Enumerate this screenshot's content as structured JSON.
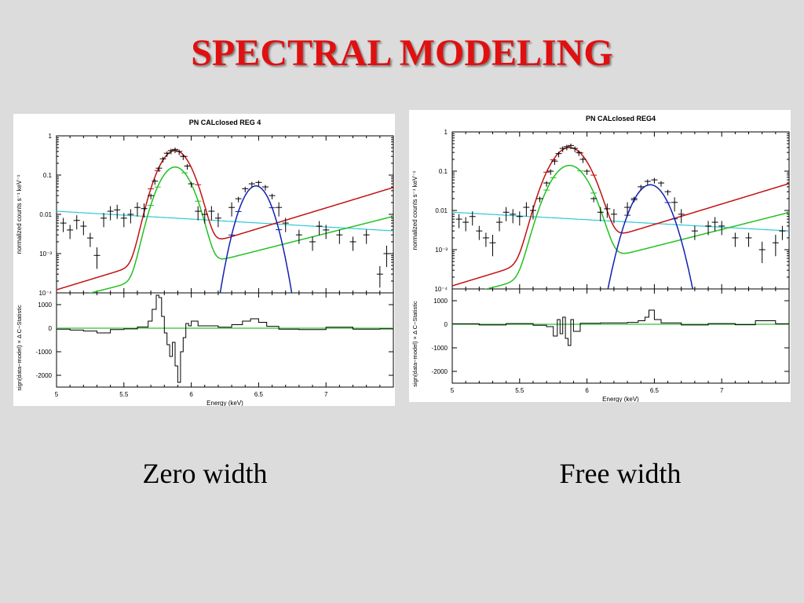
{
  "slide": {
    "title": "SPECTRAL MODELING",
    "caption_left": "Zero width",
    "caption_right": "Free width"
  },
  "colors": {
    "title": "#e01010",
    "data": "#000000",
    "total_model": "#c01010",
    "fe_xxv_line": "#20c020",
    "fe_xxvi_line": "#1020b0",
    "continuum": "#30c8d8",
    "residual_zero": "#30c030"
  },
  "chart_data": [
    {
      "type": "line",
      "title": "PN CALclosed REG 4",
      "xlabel": "Energy (keV)",
      "ylabel": "normalized counts s⁻¹ keV⁻¹",
      "yscale": "log",
      "xlim": [
        5,
        7.5
      ],
      "ylim": [
        0.0001,
        1
      ],
      "x_ticks": [
        "5",
        "5.5",
        "6",
        "6.5",
        "7"
      ],
      "y_ticks": [
        "1",
        "0.1",
        "0.01",
        "10⁻³",
        "10⁻⁴"
      ],
      "components": {
        "continuum": {
          "slope_a": [
            5,
            0.012
          ],
          "slope_b": [
            7.5,
            0.0038
          ]
        },
        "line1": {
          "center": 5.88,
          "amp": 0.16,
          "sigma": 0.085
        },
        "line1_total_amp": 0.42,
        "line2": {
          "center": 6.48,
          "amp": 0.053,
          "sigma": 0.075
        }
      },
      "data_points": [
        {
          "x": 5.05,
          "y": 0.006
        },
        {
          "x": 5.1,
          "y": 0.004
        },
        {
          "x": 5.15,
          "y": 0.007
        },
        {
          "x": 5.2,
          "y": 0.005
        },
        {
          "x": 5.25,
          "y": 0.0025
        },
        {
          "x": 5.3,
          "y": 0.0009
        },
        {
          "x": 5.35,
          "y": 0.008
        },
        {
          "x": 5.4,
          "y": 0.012
        },
        {
          "x": 5.45,
          "y": 0.013
        },
        {
          "x": 5.5,
          "y": 0.008
        },
        {
          "x": 5.55,
          "y": 0.01
        },
        {
          "x": 5.6,
          "y": 0.015
        },
        {
          "x": 5.65,
          "y": 0.014
        },
        {
          "x": 5.7,
          "y": 0.03
        },
        {
          "x": 5.73,
          "y": 0.07
        },
        {
          "x": 5.76,
          "y": 0.15
        },
        {
          "x": 5.79,
          "y": 0.26
        },
        {
          "x": 5.82,
          "y": 0.36
        },
        {
          "x": 5.85,
          "y": 0.42
        },
        {
          "x": 5.88,
          "y": 0.45
        },
        {
          "x": 5.91,
          "y": 0.4
        },
        {
          "x": 5.94,
          "y": 0.3
        },
        {
          "x": 5.97,
          "y": 0.17
        },
        {
          "x": 6.0,
          "y": 0.06
        },
        {
          "x": 6.05,
          "y": 0.012
        },
        {
          "x": 6.1,
          "y": 0.01
        },
        {
          "x": 6.15,
          "y": 0.012
        },
        {
          "x": 6.2,
          "y": 0.008
        },
        {
          "x": 6.3,
          "y": 0.015
        },
        {
          "x": 6.35,
          "y": 0.025
        },
        {
          "x": 6.4,
          "y": 0.045
        },
        {
          "x": 6.45,
          "y": 0.06
        },
        {
          "x": 6.5,
          "y": 0.065
        },
        {
          "x": 6.55,
          "y": 0.05
        },
        {
          "x": 6.6,
          "y": 0.03
        },
        {
          "x": 6.65,
          "y": 0.015
        },
        {
          "x": 6.7,
          "y": 0.006
        },
        {
          "x": 6.8,
          "y": 0.003
        },
        {
          "x": 6.9,
          "y": 0.002
        },
        {
          "x": 6.95,
          "y": 0.005
        },
        {
          "x": 7.0,
          "y": 0.004
        },
        {
          "x": 7.1,
          "y": 0.003
        },
        {
          "x": 7.2,
          "y": 0.002
        },
        {
          "x": 7.3,
          "y": 0.003
        },
        {
          "x": 7.4,
          "y": 0.0003
        },
        {
          "x": 7.45,
          "y": 0.001
        }
      ],
      "residual": {
        "ylabel": "sign(data−model) × Δ C−Statistic",
        "ylim": [
          -2500,
          1500
        ],
        "y_ticks": [
          1000,
          0,
          -1000,
          -2000
        ],
        "points": [
          {
            "x": 5.0,
            "y": -40
          },
          {
            "x": 5.1,
            "y": -80
          },
          {
            "x": 5.2,
            "y": -120
          },
          {
            "x": 5.3,
            "y": -200
          },
          {
            "x": 5.4,
            "y": -60
          },
          {
            "x": 5.5,
            "y": -30
          },
          {
            "x": 5.6,
            "y": 50
          },
          {
            "x": 5.68,
            "y": 300
          },
          {
            "x": 5.71,
            "y": 800
          },
          {
            "x": 5.74,
            "y": 1400
          },
          {
            "x": 5.76,
            "y": 1300
          },
          {
            "x": 5.78,
            "y": 500
          },
          {
            "x": 5.8,
            "y": -200
          },
          {
            "x": 5.82,
            "y": -700
          },
          {
            "x": 5.84,
            "y": -1200
          },
          {
            "x": 5.86,
            "y": -600
          },
          {
            "x": 5.88,
            "y": -1600
          },
          {
            "x": 5.9,
            "y": -2300
          },
          {
            "x": 5.92,
            "y": -1000
          },
          {
            "x": 5.94,
            "y": -400
          },
          {
            "x": 5.96,
            "y": 200
          },
          {
            "x": 5.98,
            "y": 100
          },
          {
            "x": 6.0,
            "y": 300
          },
          {
            "x": 6.05,
            "y": 100
          },
          {
            "x": 6.2,
            "y": 40
          },
          {
            "x": 6.3,
            "y": 150
          },
          {
            "x": 6.38,
            "y": 300
          },
          {
            "x": 6.44,
            "y": 400
          },
          {
            "x": 6.5,
            "y": 250
          },
          {
            "x": 6.56,
            "y": 80
          },
          {
            "x": 6.65,
            "y": -40
          },
          {
            "x": 6.8,
            "y": -60
          },
          {
            "x": 7.0,
            "y": 40
          },
          {
            "x": 7.2,
            "y": -40
          },
          {
            "x": 7.4,
            "y": -30
          }
        ]
      }
    },
    {
      "type": "line",
      "title": "PN CALclosed REG4",
      "xlabel": "Energy (keV)",
      "ylabel": "normalized counts s⁻¹ keV⁻¹",
      "yscale": "log",
      "xlim": [
        5,
        7.5
      ],
      "ylim": [
        0.0001,
        1
      ],
      "x_ticks": [
        "5",
        "5.5",
        "6",
        "6.5",
        "7"
      ],
      "y_ticks": [
        "1",
        "0.1",
        "0.01",
        "10⁻³",
        "10⁻⁴"
      ],
      "components": {
        "continuum": {
          "slope_a": [
            5,
            0.009
          ],
          "slope_b": [
            7.5,
            0.003
          ]
        },
        "line1": {
          "center": 5.87,
          "amp": 0.14,
          "sigma": 0.1
        },
        "line1_total_amp": 0.4,
        "line2": {
          "center": 6.47,
          "amp": 0.045,
          "sigma": 0.09
        }
      },
      "data_points": [
        {
          "x": 5.05,
          "y": 0.006
        },
        {
          "x": 5.1,
          "y": 0.005
        },
        {
          "x": 5.15,
          "y": 0.007
        },
        {
          "x": 5.2,
          "y": 0.003
        },
        {
          "x": 5.25,
          "y": 0.002
        },
        {
          "x": 5.3,
          "y": 0.0015
        },
        {
          "x": 5.35,
          "y": 0.005
        },
        {
          "x": 5.4,
          "y": 0.009
        },
        {
          "x": 5.45,
          "y": 0.008
        },
        {
          "x": 5.5,
          "y": 0.007
        },
        {
          "x": 5.55,
          "y": 0.012
        },
        {
          "x": 5.6,
          "y": 0.01
        },
        {
          "x": 5.65,
          "y": 0.02
        },
        {
          "x": 5.7,
          "y": 0.05
        },
        {
          "x": 5.73,
          "y": 0.1
        },
        {
          "x": 5.76,
          "y": 0.18
        },
        {
          "x": 5.79,
          "y": 0.28
        },
        {
          "x": 5.82,
          "y": 0.38
        },
        {
          "x": 5.85,
          "y": 0.42
        },
        {
          "x": 5.88,
          "y": 0.45
        },
        {
          "x": 5.91,
          "y": 0.38
        },
        {
          "x": 5.94,
          "y": 0.3
        },
        {
          "x": 5.97,
          "y": 0.2
        },
        {
          "x": 6.0,
          "y": 0.1
        },
        {
          "x": 6.05,
          "y": 0.02
        },
        {
          "x": 6.1,
          "y": 0.009
        },
        {
          "x": 6.15,
          "y": 0.011
        },
        {
          "x": 6.2,
          "y": 0.008
        },
        {
          "x": 6.3,
          "y": 0.012
        },
        {
          "x": 6.35,
          "y": 0.02
        },
        {
          "x": 6.4,
          "y": 0.04
        },
        {
          "x": 6.45,
          "y": 0.055
        },
        {
          "x": 6.5,
          "y": 0.06
        },
        {
          "x": 6.55,
          "y": 0.05
        },
        {
          "x": 6.6,
          "y": 0.03
        },
        {
          "x": 6.65,
          "y": 0.016
        },
        {
          "x": 6.7,
          "y": 0.008
        },
        {
          "x": 6.8,
          "y": 0.003
        },
        {
          "x": 6.9,
          "y": 0.004
        },
        {
          "x": 6.95,
          "y": 0.005
        },
        {
          "x": 7.0,
          "y": 0.004
        },
        {
          "x": 7.1,
          "y": 0.002
        },
        {
          "x": 7.2,
          "y": 0.002
        },
        {
          "x": 7.3,
          "y": 0.001
        },
        {
          "x": 7.4,
          "y": 0.0015
        },
        {
          "x": 7.45,
          "y": 0.003
        }
      ],
      "residual": {
        "ylabel": "sign(data−model) × Δ C−Statistic",
        "ylim": [
          -2500,
          1500
        ],
        "y_ticks": [
          1000,
          0,
          -1000,
          -2000
        ],
        "points": [
          {
            "x": 5.0,
            "y": 20
          },
          {
            "x": 5.2,
            "y": -30
          },
          {
            "x": 5.4,
            "y": 30
          },
          {
            "x": 5.6,
            "y": -40
          },
          {
            "x": 5.7,
            "y": -100
          },
          {
            "x": 5.75,
            "y": -500
          },
          {
            "x": 5.78,
            "y": 200
          },
          {
            "x": 5.8,
            "y": -400
          },
          {
            "x": 5.82,
            "y": 300
          },
          {
            "x": 5.84,
            "y": -600
          },
          {
            "x": 5.86,
            "y": -900
          },
          {
            "x": 5.88,
            "y": 200
          },
          {
            "x": 5.9,
            "y": -300
          },
          {
            "x": 5.95,
            "y": 40
          },
          {
            "x": 6.1,
            "y": 60
          },
          {
            "x": 6.3,
            "y": 80
          },
          {
            "x": 6.38,
            "y": 150
          },
          {
            "x": 6.43,
            "y": 300
          },
          {
            "x": 6.46,
            "y": 600
          },
          {
            "x": 6.5,
            "y": 200
          },
          {
            "x": 6.55,
            "y": 60
          },
          {
            "x": 6.7,
            "y": -30
          },
          {
            "x": 6.9,
            "y": 30
          },
          {
            "x": 7.1,
            "y": -20
          },
          {
            "x": 7.25,
            "y": 150
          },
          {
            "x": 7.4,
            "y": 20
          }
        ]
      }
    }
  ]
}
